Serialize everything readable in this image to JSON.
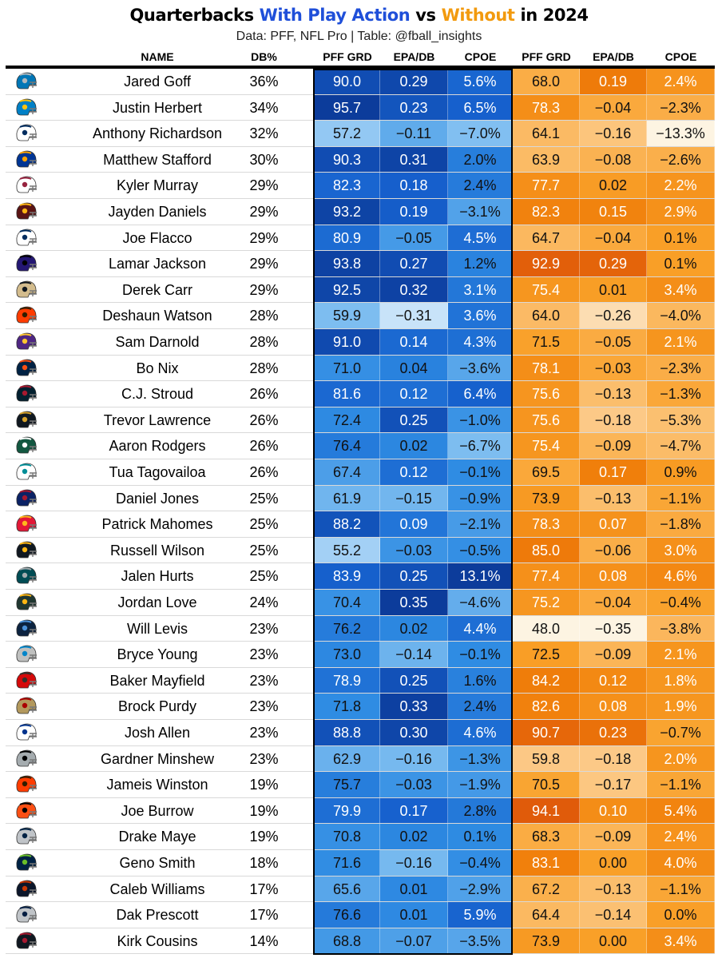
{
  "title": {
    "part1": "Quarterbacks ",
    "part2": "With Play Action",
    "part3": " vs ",
    "part4": "Without",
    "part5": " in 2024"
  },
  "subtitle": "Data: PFF, NFL Pro | Table: @fball_insights",
  "colors": {
    "title_blue": "#1f4fd9",
    "title_orange": "#f29a0e"
  },
  "chart_data": {
    "type": "table",
    "columns": [
      "NAME",
      "DB%",
      "PFF GRD",
      "EPA/DB",
      "CPOE",
      "PFF GRD",
      "EPA/DB",
      "CPOE"
    ],
    "rows": [
      {
        "logo": "lions-helmet-icon",
        "name": "Jared Goff",
        "db": "36%",
        "pa": [
          "90.0",
          "0.29",
          "5.6%"
        ],
        "npa": [
          "68.0",
          "0.19",
          "2.4%"
        ]
      },
      {
        "logo": "chargers-helmet-icon",
        "name": "Justin Herbert",
        "db": "34%",
        "pa": [
          "95.7",
          "0.23",
          "6.5%"
        ],
        "npa": [
          "78.3",
          "−0.04",
          "−2.3%"
        ]
      },
      {
        "logo": "colts-helmet-icon",
        "name": "Anthony Richardson",
        "db": "32%",
        "pa": [
          "57.2",
          "−0.11",
          "−7.0%"
        ],
        "npa": [
          "64.1",
          "−0.16",
          "−13.3%"
        ]
      },
      {
        "logo": "rams-helmet-icon",
        "name": "Matthew Stafford",
        "db": "30%",
        "pa": [
          "90.3",
          "0.31",
          "2.0%"
        ],
        "npa": [
          "63.9",
          "−0.08",
          "−2.6%"
        ]
      },
      {
        "logo": "cardinals-helmet-icon",
        "name": "Kyler Murray",
        "db": "29%",
        "pa": [
          "82.3",
          "0.18",
          "2.4%"
        ],
        "npa": [
          "77.7",
          "0.02",
          "2.2%"
        ]
      },
      {
        "logo": "commanders-helmet-icon",
        "name": "Jayden Daniels",
        "db": "29%",
        "pa": [
          "93.2",
          "0.19",
          "−3.1%"
        ],
        "npa": [
          "82.3",
          "0.15",
          "2.9%"
        ]
      },
      {
        "logo": "colts-helmet-icon",
        "name": "Joe Flacco",
        "db": "29%",
        "pa": [
          "80.9",
          "−0.05",
          "4.5%"
        ],
        "npa": [
          "64.7",
          "−0.04",
          "0.1%"
        ]
      },
      {
        "logo": "ravens-helmet-icon",
        "name": "Lamar Jackson",
        "db": "29%",
        "pa": [
          "93.8",
          "0.27",
          "1.2%"
        ],
        "npa": [
          "92.9",
          "0.29",
          "0.1%"
        ]
      },
      {
        "logo": "saints-helmet-icon",
        "name": "Derek Carr",
        "db": "29%",
        "pa": [
          "92.5",
          "0.32",
          "3.1%"
        ],
        "npa": [
          "75.4",
          "0.01",
          "3.4%"
        ]
      },
      {
        "logo": "browns-helmet-icon",
        "name": "Deshaun Watson",
        "db": "28%",
        "pa": [
          "59.9",
          "−0.31",
          "3.6%"
        ],
        "npa": [
          "64.0",
          "−0.26",
          "−4.0%"
        ]
      },
      {
        "logo": "vikings-helmet-icon",
        "name": "Sam Darnold",
        "db": "28%",
        "pa": [
          "91.0",
          "0.14",
          "4.3%"
        ],
        "npa": [
          "71.5",
          "−0.05",
          "2.1%"
        ]
      },
      {
        "logo": "broncos-helmet-icon",
        "name": "Bo Nix",
        "db": "28%",
        "pa": [
          "71.0",
          "0.04",
          "−3.6%"
        ],
        "npa": [
          "78.1",
          "−0.03",
          "−2.3%"
        ]
      },
      {
        "logo": "texans-helmet-icon",
        "name": "C.J. Stroud",
        "db": "26%",
        "pa": [
          "81.6",
          "0.12",
          "6.4%"
        ],
        "npa": [
          "75.6",
          "−0.13",
          "−1.3%"
        ]
      },
      {
        "logo": "jaguars-helmet-icon",
        "name": "Trevor Lawrence",
        "db": "26%",
        "pa": [
          "72.4",
          "0.25",
          "−1.0%"
        ],
        "npa": [
          "75.6",
          "−0.18",
          "−5.3%"
        ]
      },
      {
        "logo": "jets-helmet-icon",
        "name": "Aaron Rodgers",
        "db": "26%",
        "pa": [
          "76.4",
          "0.02",
          "−6.7%"
        ],
        "npa": [
          "75.4",
          "−0.09",
          "−4.7%"
        ]
      },
      {
        "logo": "dolphins-helmet-icon",
        "name": "Tua Tagovailoa",
        "db": "26%",
        "pa": [
          "67.4",
          "0.12",
          "−0.1%"
        ],
        "npa": [
          "69.5",
          "0.17",
          "0.9%"
        ]
      },
      {
        "logo": "giants-helmet-icon",
        "name": "Daniel Jones",
        "db": "25%",
        "pa": [
          "61.9",
          "−0.15",
          "−0.9%"
        ],
        "npa": [
          "73.9",
          "−0.13",
          "−1.1%"
        ]
      },
      {
        "logo": "chiefs-helmet-icon",
        "name": "Patrick Mahomes",
        "db": "25%",
        "pa": [
          "88.2",
          "0.09",
          "−2.1%"
        ],
        "npa": [
          "78.3",
          "0.07",
          "−1.8%"
        ]
      },
      {
        "logo": "steelers-helmet-icon",
        "name": "Russell Wilson",
        "db": "25%",
        "pa": [
          "55.2",
          "−0.03",
          "−0.5%"
        ],
        "npa": [
          "85.0",
          "−0.06",
          "3.0%"
        ]
      },
      {
        "logo": "eagles-helmet-icon",
        "name": "Jalen Hurts",
        "db": "25%",
        "pa": [
          "83.9",
          "0.25",
          "13.1%"
        ],
        "npa": [
          "77.4",
          "0.08",
          "4.6%"
        ]
      },
      {
        "logo": "packers-helmet-icon",
        "name": "Jordan Love",
        "db": "24%",
        "pa": [
          "70.4",
          "0.35",
          "−4.6%"
        ],
        "npa": [
          "75.2",
          "−0.04",
          "−0.4%"
        ]
      },
      {
        "logo": "titans-helmet-icon",
        "name": "Will Levis",
        "db": "23%",
        "pa": [
          "76.2",
          "0.02",
          "4.4%"
        ],
        "npa": [
          "48.0",
          "−0.35",
          "−3.8%"
        ]
      },
      {
        "logo": "panthers-helmet-icon",
        "name": "Bryce Young",
        "db": "23%",
        "pa": [
          "73.0",
          "−0.14",
          "−0.1%"
        ],
        "npa": [
          "72.5",
          "−0.09",
          "2.1%"
        ]
      },
      {
        "logo": "buccaneers-helmet-icon",
        "name": "Baker Mayfield",
        "db": "23%",
        "pa": [
          "78.9",
          "0.25",
          "1.6%"
        ],
        "npa": [
          "84.2",
          "0.12",
          "1.8%"
        ]
      },
      {
        "logo": "49ers-helmet-icon",
        "name": "Brock Purdy",
        "db": "23%",
        "pa": [
          "71.8",
          "0.33",
          "2.4%"
        ],
        "npa": [
          "82.6",
          "0.08",
          "1.9%"
        ]
      },
      {
        "logo": "bills-helmet-icon",
        "name": "Josh Allen",
        "db": "23%",
        "pa": [
          "88.8",
          "0.30",
          "4.6%"
        ],
        "npa": [
          "90.7",
          "0.23",
          "−0.7%"
        ]
      },
      {
        "logo": "raiders-helmet-icon",
        "name": "Gardner Minshew",
        "db": "23%",
        "pa": [
          "62.9",
          "−0.16",
          "−1.3%"
        ],
        "npa": [
          "59.8",
          "−0.18",
          "2.0%"
        ]
      },
      {
        "logo": "browns-helmet-icon",
        "name": "Jameis Winston",
        "db": "19%",
        "pa": [
          "75.7",
          "−0.03",
          "−1.9%"
        ],
        "npa": [
          "70.5",
          "−0.17",
          "−1.1%"
        ]
      },
      {
        "logo": "bengals-helmet-icon",
        "name": "Joe Burrow",
        "db": "19%",
        "pa": [
          "79.9",
          "0.17",
          "2.8%"
        ],
        "npa": [
          "94.1",
          "0.10",
          "5.4%"
        ]
      },
      {
        "logo": "patriots-helmet-icon",
        "name": "Drake Maye",
        "db": "19%",
        "pa": [
          "70.8",
          "0.02",
          "0.1%"
        ],
        "npa": [
          "68.3",
          "−0.09",
          "2.4%"
        ]
      },
      {
        "logo": "seahawks-helmet-icon",
        "name": "Geno Smith",
        "db": "18%",
        "pa": [
          "71.6",
          "−0.16",
          "−0.4%"
        ],
        "npa": [
          "83.1",
          "0.00",
          "4.0%"
        ]
      },
      {
        "logo": "bears-helmet-icon",
        "name": "Caleb Williams",
        "db": "17%",
        "pa": [
          "65.6",
          "0.01",
          "−2.9%"
        ],
        "npa": [
          "67.2",
          "−0.13",
          "−1.1%"
        ]
      },
      {
        "logo": "cowboys-helmet-icon",
        "name": "Dak Prescott",
        "db": "17%",
        "pa": [
          "76.6",
          "0.01",
          "5.9%"
        ],
        "npa": [
          "64.4",
          "−0.14",
          "0.0%"
        ]
      },
      {
        "logo": "falcons-helmet-icon",
        "name": "Kirk Cousins",
        "db": "14%",
        "pa": [
          "68.8",
          "−0.07",
          "−3.5%"
        ],
        "npa": [
          "73.9",
          "0.00",
          "3.4%"
        ]
      }
    ]
  }
}
